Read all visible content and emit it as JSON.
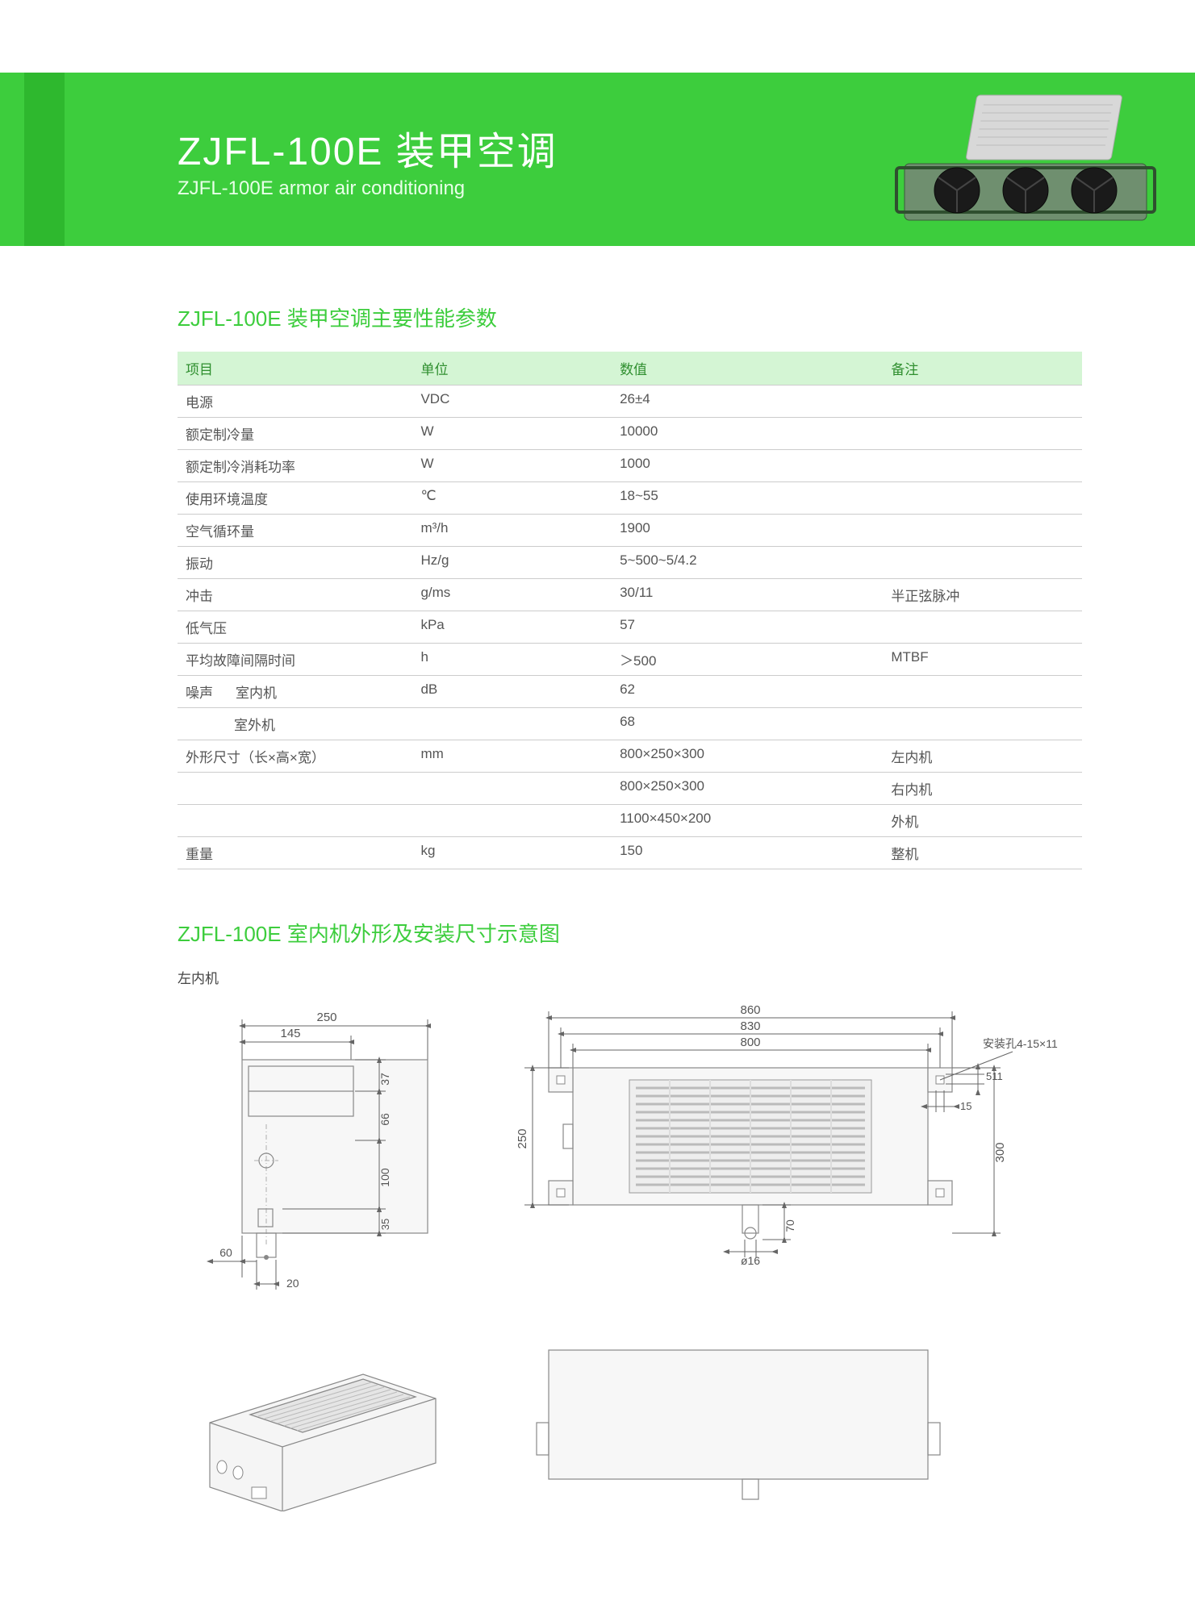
{
  "header": {
    "title_cn": "ZJFL-100E 装甲空调",
    "title_en": "ZJFL-100E armor air conditioning",
    "band_color": "#3dcd3d",
    "stripe_color": "#2eb82e"
  },
  "spec_section": {
    "title": "ZJFL-100E 装甲空调主要性能参数",
    "columns": [
      "项目",
      "单位",
      "数值",
      "备注"
    ],
    "rows": [
      {
        "item": "电源",
        "sub": "",
        "unit": "VDC",
        "value": "26±4",
        "note": ""
      },
      {
        "item": "额定制冷量",
        "sub": "",
        "unit": "W",
        "value": "10000",
        "note": ""
      },
      {
        "item": "额定制冷消耗功率",
        "sub": "",
        "unit": "W",
        "value": "1000",
        "note": ""
      },
      {
        "item": "使用环境温度",
        "sub": "",
        "unit": "℃",
        "value": "18~55",
        "note": ""
      },
      {
        "item": "空气循环量",
        "sub": "",
        "unit": "m³/h",
        "value": "1900",
        "note": ""
      },
      {
        "item": "振动",
        "sub": "",
        "unit": "Hz/g",
        "value": "5~500~5/4.2",
        "note": ""
      },
      {
        "item": "冲击",
        "sub": "",
        "unit": "g/ms",
        "value": "30/11",
        "note": "半正弦脉冲"
      },
      {
        "item": "低气压",
        "sub": "",
        "unit": "kPa",
        "value": "57",
        "note": ""
      },
      {
        "item": "平均故障间隔时间",
        "sub": "",
        "unit": "h",
        "value": "＞500",
        "note": "MTBF"
      },
      {
        "item": "噪声",
        "sub": "室内机",
        "unit": "dB",
        "value": "62",
        "note": ""
      },
      {
        "item": "",
        "sub": "室外机",
        "unit": "",
        "value": "68",
        "note": ""
      },
      {
        "item": "外形尺寸（长×高×宽）",
        "sub": "",
        "unit": "mm",
        "value": "800×250×300",
        "note": "左内机"
      },
      {
        "item": "",
        "sub": "",
        "unit": "",
        "value": "800×250×300",
        "note": "右内机"
      },
      {
        "item": "",
        "sub": "",
        "unit": "",
        "value": "1100×450×200",
        "note": "外机"
      },
      {
        "item": "重量",
        "sub": "",
        "unit": "kg",
        "value": "150",
        "note": "整机"
      }
    ]
  },
  "diagram_section": {
    "title": "ZJFL-100E 室内机外形及安装尺寸示意图",
    "sublabel": "左内机",
    "dims": {
      "top_left_250": "250",
      "top_left_145": "145",
      "left_37": "37",
      "left_66": "66",
      "left_100": "100",
      "left_35": "35",
      "left_60": "60",
      "left_20": "20",
      "front_860": "860",
      "front_830": "830",
      "front_800": "800",
      "front_250": "250",
      "front_300": "300",
      "front_511": "511",
      "front_15": "15",
      "front_70": "70",
      "front_phi16": "ø16",
      "front_hole_note": "安装孔4-15×11"
    }
  },
  "colors": {
    "title_green": "#3dcd3d",
    "th_bg": "#d4f5d4",
    "th_text": "#2f8f2f",
    "border": "#cccccc",
    "text": "#555555"
  }
}
